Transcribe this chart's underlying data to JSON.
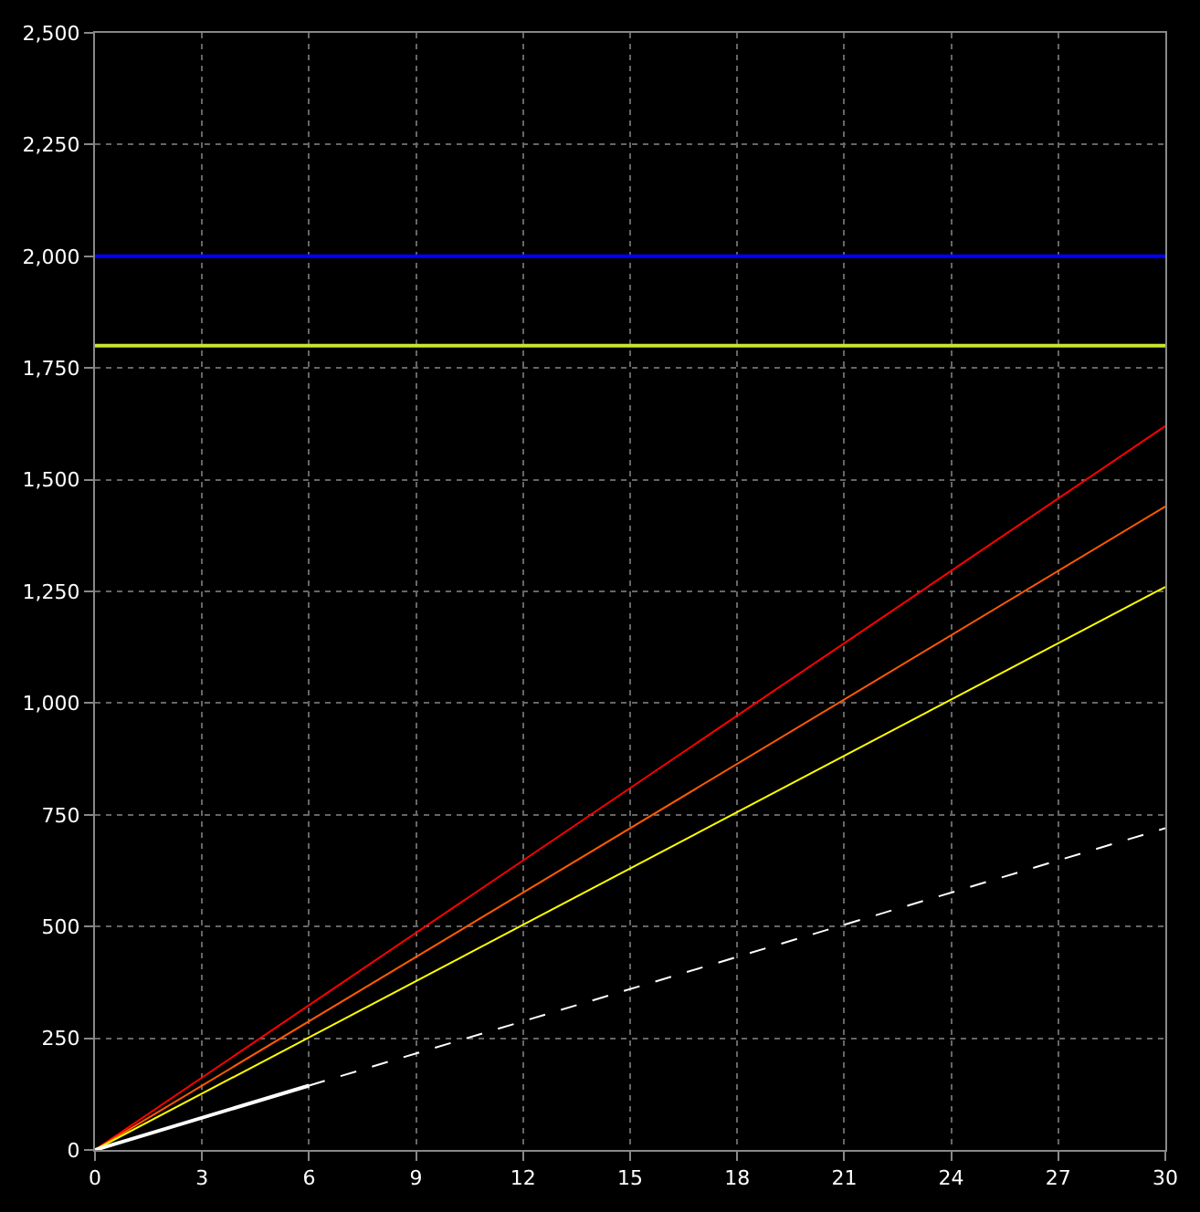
{
  "chart_data": {
    "type": "line",
    "xlim": [
      0,
      30
    ],
    "ylim": [
      0,
      2500
    ],
    "xticks": [
      0,
      3,
      6,
      9,
      12,
      15,
      18,
      21,
      24,
      27,
      30
    ],
    "yticks": [
      0,
      250,
      500,
      750,
      {
        "value": 1000,
        "label": "1,000"
      },
      {
        "value": 1250,
        "label": "1,250"
      },
      {
        "value": 1500,
        "label": "1,500"
      },
      {
        "value": 1750,
        "label": "1,750"
      },
      {
        "value": 2000,
        "label": "2,000"
      },
      {
        "value": 2250,
        "label": "2,250"
      },
      {
        "value": 2500,
        "label": "2,500"
      }
    ],
    "grid": true,
    "legend": false,
    "series": [
      {
        "color": "#0000ff",
        "x": [
          0,
          30
        ],
        "values": [
          2000,
          2000
        ]
      },
      {
        "color": "#c8e632",
        "x": [
          0,
          30
        ],
        "values": [
          1800,
          1800
        ]
      },
      {
        "color": "#ff0000",
        "x": [
          0,
          30
        ],
        "values": [
          0,
          1620
        ]
      },
      {
        "color": "#ff5a00",
        "x": [
          0,
          30
        ],
        "values": [
          0,
          1440
        ]
      },
      {
        "color": "#ffff00",
        "x": [
          0,
          30
        ],
        "values": [
          0,
          1260
        ]
      },
      {
        "color": "#ffffff",
        "x": [
          6,
          30
        ],
        "values": [
          144,
          720
        ],
        "line_style": "dashed"
      },
      {
        "color": "#ffffff",
        "x": [
          0,
          6
        ],
        "values": [
          0,
          144
        ]
      }
    ]
  }
}
